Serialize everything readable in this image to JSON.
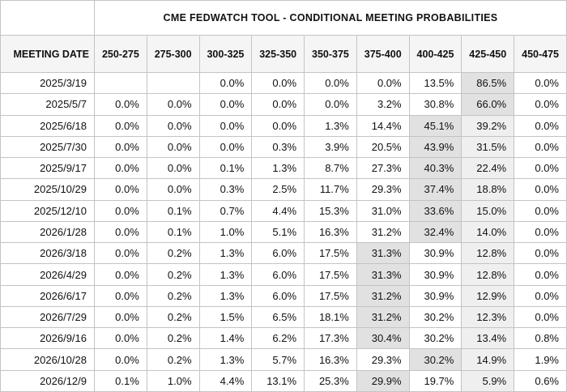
{
  "title": "CME FEDWATCH TOOL - CONDITIONAL MEETING PROBABILITIES",
  "table": {
    "date_column_header": "MEETING DATE",
    "rate_columns": [
      "250-275",
      "275-300",
      "300-325",
      "325-350",
      "350-375",
      "375-400",
      "400-425",
      "425-450",
      "450-475"
    ],
    "current_target_column": "425-450",
    "rows": [
      {
        "date": "2025/3/19",
        "values": [
          null,
          null,
          "0.0%",
          "0.0%",
          "0.0%",
          "0.0%",
          "13.5%",
          "86.5%",
          "0.0%"
        ],
        "max_col": 7
      },
      {
        "date": "2025/5/7",
        "values": [
          "0.0%",
          "0.0%",
          "0.0%",
          "0.0%",
          "0.0%",
          "3.2%",
          "30.8%",
          "66.0%",
          "0.0%"
        ],
        "max_col": 7
      },
      {
        "date": "2025/6/18",
        "values": [
          "0.0%",
          "0.0%",
          "0.0%",
          "0.0%",
          "1.3%",
          "14.4%",
          "45.1%",
          "39.2%",
          "0.0%"
        ],
        "max_col": 6
      },
      {
        "date": "2025/7/30",
        "values": [
          "0.0%",
          "0.0%",
          "0.0%",
          "0.3%",
          "3.9%",
          "20.5%",
          "43.9%",
          "31.5%",
          "0.0%"
        ],
        "max_col": 6
      },
      {
        "date": "2025/9/17",
        "values": [
          "0.0%",
          "0.0%",
          "0.1%",
          "1.3%",
          "8.7%",
          "27.3%",
          "40.3%",
          "22.4%",
          "0.0%"
        ],
        "max_col": 6
      },
      {
        "date": "2025/10/29",
        "values": [
          "0.0%",
          "0.0%",
          "0.3%",
          "2.5%",
          "11.7%",
          "29.3%",
          "37.4%",
          "18.8%",
          "0.0%"
        ],
        "max_col": 6
      },
      {
        "date": "2025/12/10",
        "values": [
          "0.0%",
          "0.1%",
          "0.7%",
          "4.4%",
          "15.3%",
          "31.0%",
          "33.6%",
          "15.0%",
          "0.0%"
        ],
        "max_col": 6
      },
      {
        "date": "2026/1/28",
        "values": [
          "0.0%",
          "0.1%",
          "1.0%",
          "5.1%",
          "16.3%",
          "31.2%",
          "32.4%",
          "14.0%",
          "0.0%"
        ],
        "max_col": 6
      },
      {
        "date": "2026/3/18",
        "values": [
          "0.0%",
          "0.2%",
          "1.3%",
          "6.0%",
          "17.5%",
          "31.3%",
          "30.9%",
          "12.8%",
          "0.0%"
        ],
        "max_col": 5
      },
      {
        "date": "2026/4/29",
        "values": [
          "0.0%",
          "0.2%",
          "1.3%",
          "6.0%",
          "17.5%",
          "31.3%",
          "30.9%",
          "12.8%",
          "0.0%"
        ],
        "max_col": 5
      },
      {
        "date": "2026/6/17",
        "values": [
          "0.0%",
          "0.2%",
          "1.3%",
          "6.0%",
          "17.5%",
          "31.2%",
          "30.9%",
          "12.9%",
          "0.0%"
        ],
        "max_col": 5
      },
      {
        "date": "2026/7/29",
        "values": [
          "0.0%",
          "0.2%",
          "1.5%",
          "6.5%",
          "18.1%",
          "31.2%",
          "30.2%",
          "12.3%",
          "0.0%"
        ],
        "max_col": 5
      },
      {
        "date": "2026/9/16",
        "values": [
          "0.0%",
          "0.2%",
          "1.4%",
          "6.2%",
          "17.3%",
          "30.4%",
          "30.2%",
          "13.4%",
          "0.8%"
        ],
        "max_col": 5
      },
      {
        "date": "2026/10/28",
        "values": [
          "0.0%",
          "0.2%",
          "1.3%",
          "5.7%",
          "16.3%",
          "29.3%",
          "30.2%",
          "14.9%",
          "1.9%"
        ],
        "max_col": 6
      },
      {
        "date": "2026/12/9",
        "values": [
          "0.1%",
          "1.0%",
          "4.4%",
          "13.1%",
          "25.3%",
          "29.9%",
          "19.7%",
          "5.9%",
          "0.6%"
        ],
        "max_col": 5
      }
    ]
  },
  "colors": {
    "max_cell_bg": "#e1e1e1",
    "current_column_bg": "#efefef",
    "header_bg": "#f5f5f5",
    "border": "#c4c4c4",
    "text": "#111111"
  }
}
